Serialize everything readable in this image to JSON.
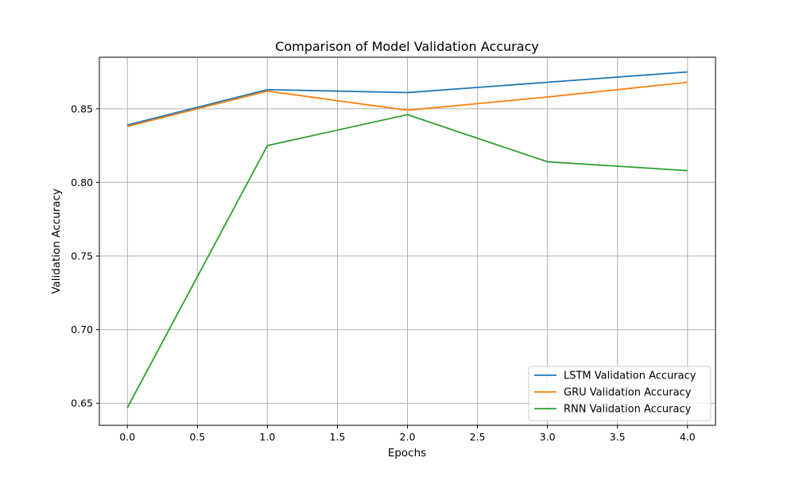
{
  "chart_data": {
    "type": "line",
    "title": "Comparison of Model Validation Accuracy",
    "xlabel": "Epochs",
    "ylabel": "Validation Accuracy",
    "xlim": [
      -0.2,
      4.2
    ],
    "ylim": [
      0.635,
      0.885
    ],
    "xticks": [
      0.0,
      0.5,
      1.0,
      1.5,
      2.0,
      2.5,
      3.0,
      3.5,
      4.0
    ],
    "xtick_labels": [
      "0.0",
      "0.5",
      "1.0",
      "1.5",
      "2.0",
      "2.5",
      "3.0",
      "3.5",
      "4.0"
    ],
    "yticks": [
      0.65,
      0.7,
      0.75,
      0.8,
      0.85
    ],
    "ytick_labels": [
      "0.65",
      "0.70",
      "0.75",
      "0.80",
      "0.85"
    ],
    "grid": true,
    "legend_position": "lower-right",
    "x": [
      0,
      1,
      2,
      3,
      4
    ],
    "series": [
      {
        "name": "LSTM Validation Accuracy",
        "color": "#1f77b4",
        "values": [
          0.839,
          0.863,
          0.861,
          0.868,
          0.875
        ]
      },
      {
        "name": "GRU Validation Accuracy",
        "color": "#ff7f0e",
        "values": [
          0.838,
          0.862,
          0.849,
          0.858,
          0.868
        ]
      },
      {
        "name": "RNN Validation Accuracy",
        "color": "#2ca02c",
        "values": [
          0.647,
          0.825,
          0.846,
          0.814,
          0.808
        ]
      }
    ]
  }
}
